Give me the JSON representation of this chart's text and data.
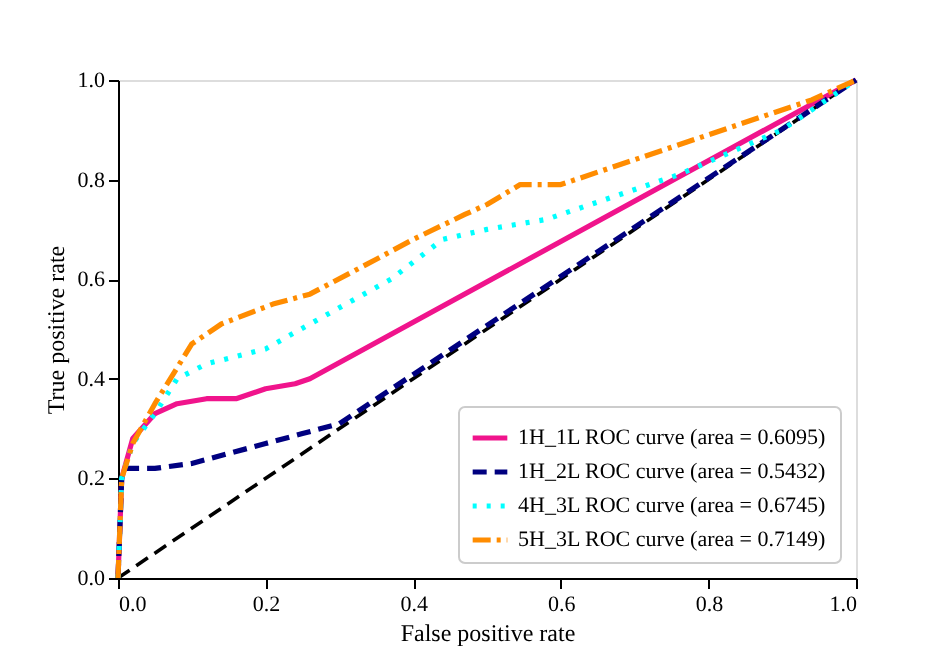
{
  "chart_data": {
    "type": "line",
    "xlabel": "False positive rate",
    "ylabel": "True positive rate",
    "xlim": [
      0,
      1
    ],
    "ylim": [
      0,
      1
    ],
    "xticks": [
      {
        "value": 0,
        "label": "0.0"
      },
      {
        "value": 0.2,
        "label": "0.2"
      },
      {
        "value": 0.4,
        "label": "0.4"
      },
      {
        "value": 0.6,
        "label": "0.6"
      },
      {
        "value": 0.8,
        "label": "0.8"
      },
      {
        "value": 1,
        "label": "1.0"
      }
    ],
    "yticks": [
      {
        "value": 0,
        "label": "0.0"
      },
      {
        "value": 0.2,
        "label": "0.2"
      },
      {
        "value": 0.4,
        "label": "0.4"
      },
      {
        "value": 0.6,
        "label": "0.6"
      },
      {
        "value": 0.8,
        "label": "0.8"
      },
      {
        "value": 1,
        "label": "1.0"
      }
    ],
    "grid": false,
    "legend": "bottom right",
    "marker": "none",
    "series": [
      {
        "name": "1H_1L ROC curve (area = 0.6095)",
        "color": "#f0148c",
        "line_style": "solid",
        "x": [
          0,
          0.005,
          0.02,
          0.05,
          0.08,
          0.12,
          0.16,
          0.2,
          0.24,
          0.26,
          1
        ],
        "values": [
          0,
          0.2,
          0.28,
          0.33,
          0.35,
          0.36,
          0.36,
          0.38,
          0.39,
          0.4,
          1
        ]
      },
      {
        "name": "1H_2L ROC curve (area = 0.5432)",
        "color": "#000080",
        "line_style": "dashed",
        "x": [
          0,
          0.005,
          0.01,
          0.05,
          0.1,
          0.15,
          0.2,
          0.25,
          0.3,
          1
        ],
        "values": [
          0,
          0.2,
          0.22,
          0.22,
          0.23,
          0.25,
          0.27,
          0.29,
          0.31,
          1
        ]
      },
      {
        "name": "4H_3L ROC curve (area = 0.6745)",
        "color": "#00ffff",
        "line_style": "dotted",
        "x": [
          0,
          0.005,
          0.02,
          0.05,
          0.08,
          0.12,
          0.2,
          0.26,
          0.37,
          0.44,
          0.5,
          0.58,
          0.76,
          0.9,
          1
        ],
        "values": [
          0,
          0.2,
          0.27,
          0.33,
          0.4,
          0.43,
          0.46,
          0.51,
          0.6,
          0.68,
          0.7,
          0.72,
          0.81,
          0.9,
          1
        ]
      },
      {
        "name": "5H_3L ROC curve (area = 0.7149)",
        "color": "#ff8c00",
        "line_style": "dashdot",
        "x": [
          0,
          0.005,
          0.02,
          0.05,
          0.1,
          0.14,
          0.21,
          0.26,
          0.35,
          0.4,
          0.47,
          0.5,
          0.545,
          0.6,
          0.76,
          0.94,
          1
        ],
        "values": [
          0,
          0.2,
          0.27,
          0.35,
          0.47,
          0.51,
          0.55,
          0.57,
          0.64,
          0.68,
          0.73,
          0.75,
          0.79,
          0.79,
          0.87,
          0.96,
          1
        ]
      },
      {
        "color": "#000000",
        "line_style": "dashed",
        "x": [
          0,
          1
        ],
        "values": [
          0,
          1
        ]
      }
    ]
  }
}
